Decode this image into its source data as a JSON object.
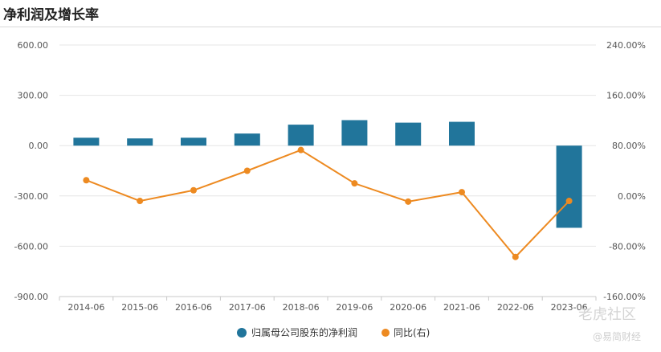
{
  "page": {
    "title": "净利润及增长率"
  },
  "legend": {
    "bar_label": "归属母公司股东的净利润",
    "line_label": "同比(右)"
  },
  "watermarks": {
    "primary": "老虎社区",
    "secondary": "@易简财经"
  },
  "colors": {
    "bar": "#21759b",
    "line": "#ed8a21",
    "grid": "#e6e6e6",
    "axis": "#c8c8c8"
  },
  "chart_data": {
    "type": "bar",
    "title": "净利润及增长率",
    "categories": [
      "2014-06",
      "2015-06",
      "2016-06",
      "2017-06",
      "2018-06",
      "2019-06",
      "2020-06",
      "2021-06",
      "2022-06",
      "2023-06"
    ],
    "series": [
      {
        "name": "归属母公司股东的净利润",
        "type": "bar",
        "axis": "left",
        "values": [
          47,
          43,
          47,
          72,
          125,
          152,
          137,
          142,
          0,
          -490
        ]
      },
      {
        "name": "同比(右)",
        "type": "line",
        "axis": "right",
        "values": [
          25,
          -8,
          9,
          40,
          73,
          20,
          -9,
          6,
          -97,
          -8
        ]
      }
    ],
    "y_left": {
      "ylim": [
        -900,
        600
      ],
      "ticks": [
        "600.00",
        "300.00",
        "0.00",
        "-300.00",
        "-600.00",
        "-900.00"
      ]
    },
    "y_right": {
      "ylim": [
        -160,
        240
      ],
      "ticks": [
        "240.00%",
        "160.00%",
        "80.00%",
        "0.00%",
        "-80.00%",
        "-160.00%"
      ]
    },
    "grid": true,
    "legend_position": "bottom"
  }
}
